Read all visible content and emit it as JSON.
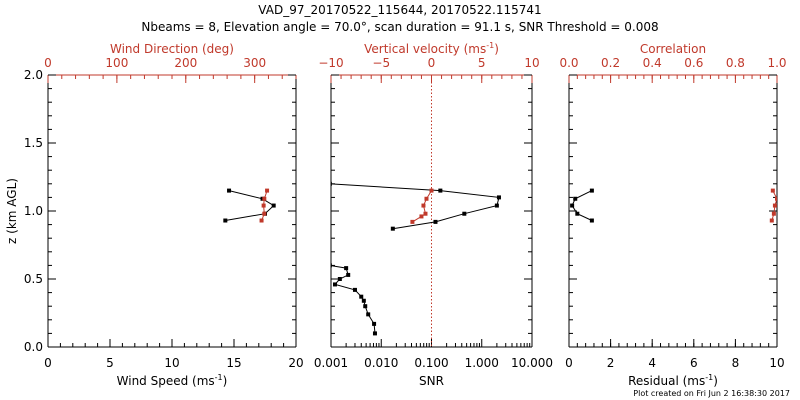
{
  "title_line1": "VAD_97_20170522_115644, 20170522.115741",
  "title_line2": "Nbeams = 8, Elevation angle = 70.0°, scan duration = 91.1 s, SNR Threshold = 0.008",
  "footer": "Plot created on Fri Jun  2 16:38:30 2017",
  "colors": {
    "primary": "#000000",
    "secondary": "#c0392b"
  },
  "chart_data": [
    {
      "type": "line",
      "ylabel": "z (km AGL)",
      "ylim": [
        0,
        2
      ],
      "yticks": [
        "0.0",
        "0.5",
        "1.0",
        "1.5",
        "2.0"
      ],
      "bottom_axis": {
        "label": "Wind Speed (ms",
        "label_sup": "-1",
        "label_end": ")",
        "lim": [
          0,
          20
        ],
        "ticks": [
          0,
          5,
          10,
          15,
          20
        ],
        "tick_labels": [
          "0",
          "5",
          "10",
          "15",
          "20"
        ]
      },
      "top_axis": {
        "label": "Wind Direction (deg)",
        "lim": [
          0,
          360
        ],
        "ticks": [
          0,
          100,
          200,
          300
        ],
        "tick_labels": [
          "0",
          "100",
          "200",
          "300"
        ]
      },
      "series": [
        {
          "axis": "bottom",
          "color": "#000000",
          "x": [
            14.6,
            17.3,
            18.2,
            17.5,
            14.3
          ],
          "y": [
            1.15,
            1.09,
            1.04,
            0.98,
            0.93
          ]
        },
        {
          "axis": "top",
          "color": "#c0392b",
          "x": [
            318,
            314,
            313,
            314,
            310
          ],
          "y": [
            1.15,
            1.09,
            1.04,
            0.98,
            0.93
          ]
        }
      ]
    },
    {
      "type": "line",
      "bottom_axis": {
        "label": "SNR",
        "scale": "log",
        "lim": [
          0.001,
          10
        ],
        "ticks": [
          0.001,
          0.01,
          0.1,
          1,
          10
        ],
        "tick_labels": [
          "0.001",
          "0.010",
          "0.100",
          "1.000",
          "10.000"
        ]
      },
      "top_axis": {
        "label": "Vertical velocity (ms",
        "label_sup": "-1",
        "label_end": ")",
        "lim": [
          -10,
          10
        ],
        "ticks": [
          -10,
          -5,
          0,
          5,
          10
        ],
        "tick_labels": [
          "−10",
          "−5",
          "0",
          "5",
          "10"
        ],
        "reference_line": 0
      },
      "series": [
        {
          "axis": "bottom",
          "color": "#000000",
          "x": [
            0.00095,
            0.15,
            2.2,
            2.0,
            0.45,
            0.12,
            0.017
          ],
          "y": [
            1.2,
            1.15,
            1.1,
            1.04,
            0.98,
            0.92,
            0.87
          ]
        },
        {
          "axis": "top",
          "color": "#c0392b",
          "x": [
            0,
            -0.5,
            -0.8,
            -0.6,
            -1.0,
            -1.9
          ],
          "y": [
            1.15,
            1.09,
            1.04,
            0.98,
            0.96,
            0.92
          ]
        },
        {
          "axis": "bottom",
          "color": "#000000",
          "x": [
            0.00095,
            0.002,
            0.0022,
            0.0015,
            0.0012,
            0.003,
            0.004,
            0.0045,
            0.0048,
            0.0055,
            0.0072,
            0.0075
          ],
          "y": [
            0.6,
            0.58,
            0.53,
            0.5,
            0.46,
            0.42,
            0.37,
            0.34,
            0.3,
            0.24,
            0.17,
            0.1
          ]
        }
      ]
    },
    {
      "type": "line",
      "bottom_axis": {
        "label": "Residual (ms",
        "label_sup": "-1",
        "label_end": ")",
        "lim": [
          0,
          10
        ],
        "ticks": [
          0,
          2,
          4,
          6,
          8,
          10
        ],
        "tick_labels": [
          "0",
          "2",
          "4",
          "6",
          "8",
          "10"
        ]
      },
      "top_axis": {
        "label": "Correlation",
        "lim": [
          0,
          1
        ],
        "ticks": [
          0,
          0.2,
          0.4,
          0.6,
          0.8,
          1.0
        ],
        "tick_labels": [
          "0.0",
          "0.2",
          "0.4",
          "0.6",
          "0.8",
          "1.0"
        ]
      },
      "series": [
        {
          "axis": "bottom",
          "color": "#000000",
          "x": [
            1.1,
            0.3,
            0.15,
            0.4,
            1.1
          ],
          "y": [
            1.15,
            1.09,
            1.04,
            0.98,
            0.93
          ]
        },
        {
          "axis": "top",
          "color": "#c0392b",
          "x": [
            0.98,
            1.0,
            0.99,
            0.985,
            0.975
          ],
          "y": [
            1.15,
            1.09,
            1.04,
            0.98,
            0.93
          ]
        }
      ]
    }
  ]
}
